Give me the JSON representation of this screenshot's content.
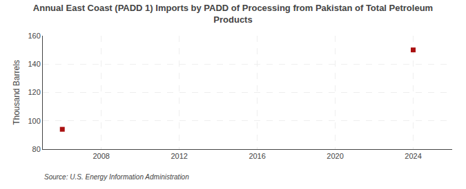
{
  "chart_data": {
    "type": "scatter",
    "title": "Annual East Coast (PADD 1) Imports by PADD of Processing from Pakistan of Total Petroleum\nProducts",
    "ylabel": "Thousand Barrels",
    "source": "Source: U.S. Energy Information Administration",
    "x": [
      2006,
      2024
    ],
    "values": [
      94,
      150
    ],
    "color": "#aa1111",
    "marker": "square",
    "xlim": [
      2005,
      2026
    ],
    "xticks": [
      2008,
      2012,
      2016,
      2020,
      2024
    ],
    "ylim": [
      80,
      160
    ],
    "yticks": [
      80,
      100,
      120,
      140,
      160
    ],
    "grid": true
  }
}
